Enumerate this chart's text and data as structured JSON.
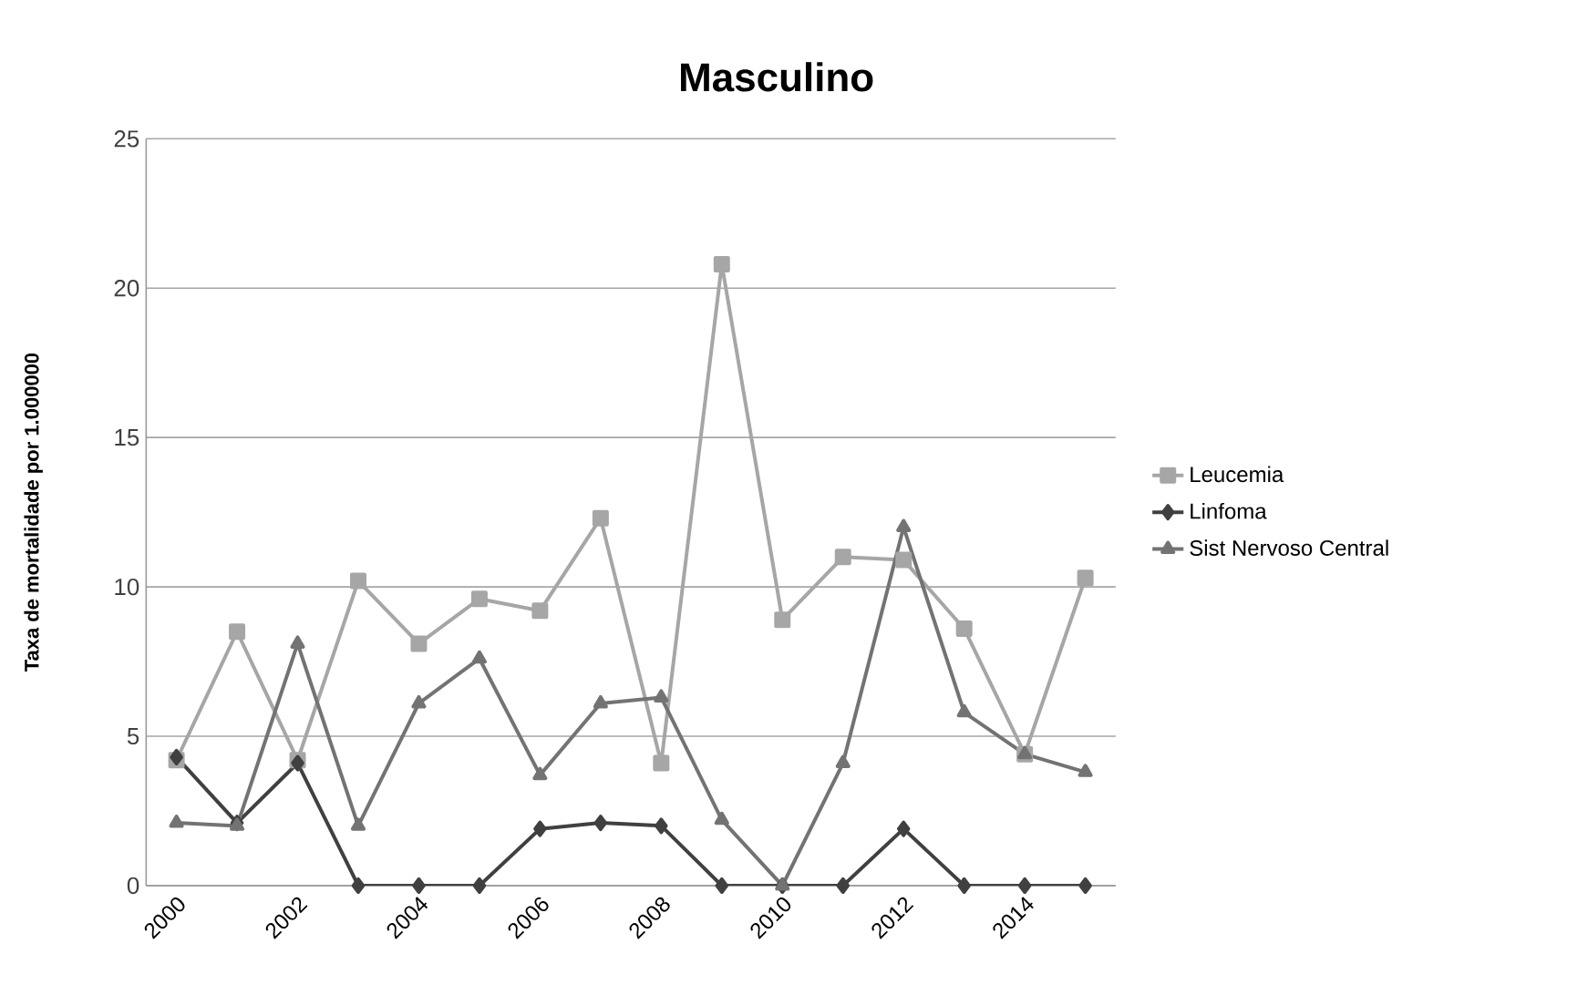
{
  "chart_data": {
    "type": "line",
    "title": "Masculino",
    "ylabel": "Taxa de mortalidade por 1.000000",
    "x": [
      2000,
      2001,
      2002,
      2003,
      2004,
      2005,
      2006,
      2007,
      2008,
      2009,
      2010,
      2011,
      2012,
      2013,
      2014,
      2015
    ],
    "series": [
      {
        "name": "Leucemia",
        "color": "#a6a6a6",
        "marker": "square",
        "values": [
          4.2,
          8.5,
          4.2,
          10.2,
          8.1,
          9.6,
          9.2,
          12.3,
          4.1,
          20.8,
          8.9,
          11.0,
          10.9,
          8.6,
          4.4,
          10.3
        ]
      },
      {
        "name": "Linfoma",
        "color": "#404040",
        "marker": "diamond",
        "values": [
          4.3,
          2.1,
          4.1,
          0,
          0,
          0,
          1.9,
          2.1,
          2.0,
          0,
          0,
          0,
          1.9,
          0,
          0,
          0
        ]
      },
      {
        "name": "Sist Nervoso Central",
        "color": "#737373",
        "marker": "triangle",
        "values": [
          2.1,
          2.0,
          8.1,
          2.0,
          6.1,
          7.6,
          3.7,
          6.1,
          6.3,
          2.2,
          0,
          4.1,
          12.0,
          5.8,
          4.4,
          3.8
        ]
      }
    ],
    "xlim": [
      1999.5,
      2015.5
    ],
    "xticks": [
      2000,
      2002,
      2004,
      2006,
      2008,
      2010,
      2012,
      2014
    ],
    "ylim": [
      0,
      25
    ],
    "yticks": [
      0,
      5,
      10,
      15,
      20,
      25
    ],
    "grid": "y",
    "legend": "right",
    "line_style": "solid"
  }
}
